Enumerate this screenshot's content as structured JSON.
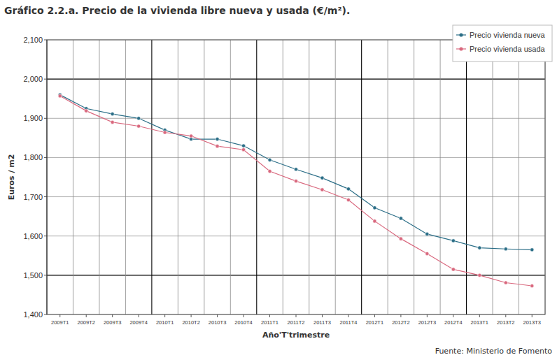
{
  "chart_data": {
    "type": "line",
    "title": "Gráfico 2.2.a. Precio de la vivienda libre nueva y usada (€/m²).",
    "x_label": "Año'T'trimestre",
    "y_label": "Euros / m2",
    "source": "Fuente: Ministerio de Fomento",
    "categories": [
      "2009T1",
      "2009T2",
      "2009T3",
      "2009T4",
      "2010T1",
      "2010T2",
      "2010T3",
      "2010T4",
      "2011T1",
      "2011T2",
      "2011T3",
      "2011T4",
      "2012T1",
      "2012T2",
      "2012T3",
      "2012T4",
      "2013T1",
      "2013T2",
      "2013T3"
    ],
    "series": [
      {
        "name": "Precio vivienda nueva",
        "color": "#2b6e87",
        "marker": "circle",
        "values": [
          1960,
          1925,
          1911,
          1900,
          1870,
          1847,
          1847,
          1830,
          1794,
          1770,
          1748,
          1720,
          1672,
          1645,
          1605,
          1588,
          1570,
          1567,
          1565
        ]
      },
      {
        "name": "Precio vivienda usada",
        "color": "#d9687e",
        "marker": "circle",
        "values": [
          1957,
          1919,
          1890,
          1880,
          1864,
          1855,
          1829,
          1820,
          1765,
          1740,
          1718,
          1692,
          1638,
          1593,
          1555,
          1515,
          1500,
          1481,
          1473
        ]
      }
    ],
    "ylim": [
      1400,
      2100
    ],
    "yticks": [
      {
        "value": 1400,
        "label": "1,400"
      },
      {
        "value": 1500,
        "label": "1,500"
      },
      {
        "value": 1600,
        "label": "1,600"
      },
      {
        "value": 1700,
        "label": "1,700"
      },
      {
        "value": 1800,
        "label": "1,800"
      },
      {
        "value": 1900,
        "label": "1,900"
      },
      {
        "value": 2000,
        "label": "2,000"
      },
      {
        "value": 2100,
        "label": "2,100"
      }
    ],
    "grid": true,
    "legend": "top-right"
  }
}
